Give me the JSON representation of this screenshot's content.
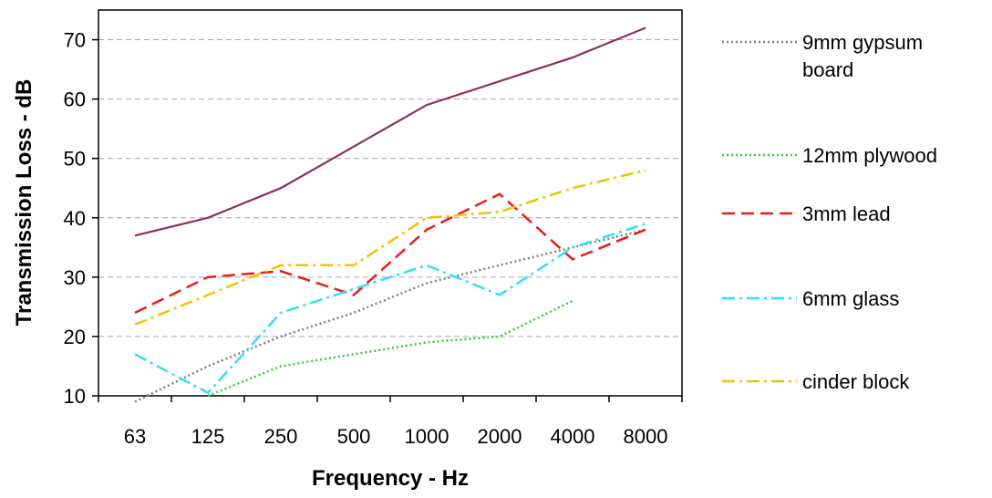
{
  "chart_data": {
    "type": "line",
    "title": "",
    "xlabel": "Frequency - Hz",
    "ylabel": "Transmission Loss - dB",
    "categories": [
      "63",
      "125",
      "250",
      "500",
      "1000",
      "2000",
      "4000",
      "8000"
    ],
    "ylim": [
      10,
      75
    ],
    "yticks": [
      "10",
      "20",
      "30",
      "40",
      "50",
      "60",
      "70"
    ],
    "grid": "horizontal dashed",
    "legend_position": "right",
    "series": [
      {
        "name": "9mm gypsum board",
        "color": "#808080",
        "dash": "dotted",
        "values": [
          9,
          15,
          20,
          24,
          29,
          32,
          35,
          38
        ]
      },
      {
        "name": "12mm plywood",
        "color": "#33cc33",
        "dash": "dotted",
        "values": [
          null,
          10,
          15,
          17,
          19,
          20,
          26,
          null
        ]
      },
      {
        "name": "3mm lead",
        "color": "#e81c1c",
        "dash": "dashed",
        "values": [
          24,
          30,
          31,
          27,
          38,
          44,
          33,
          38
        ]
      },
      {
        "name": "6mm glass",
        "color": "#33e0ee",
        "dash": "dash-dot",
        "values": [
          17,
          10.5,
          24,
          28,
          32,
          27,
          35,
          39
        ]
      },
      {
        "name": "cinder block",
        "color": "#f2c200",
        "dash": "dash-dot",
        "values": [
          22,
          27,
          32,
          32,
          40,
          41,
          45,
          48
        ]
      },
      {
        "name": "",
        "color": "#8b3060",
        "dash": "solid",
        "values": [
          37,
          40,
          45,
          52,
          59,
          63,
          67,
          72
        ]
      }
    ]
  }
}
